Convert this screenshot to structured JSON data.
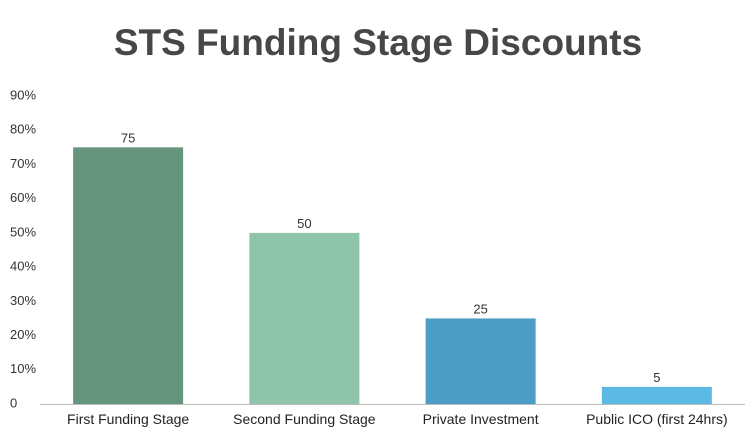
{
  "chart_data": {
    "type": "bar",
    "title": "STS Funding Stage Discounts",
    "categories": [
      "First Funding Stage",
      "Second Funding Stage",
      "Private Investment",
      "Public ICO (first 24hrs)"
    ],
    "values": [
      75,
      50,
      25,
      5
    ],
    "data_labels": [
      "75",
      "50",
      "25",
      "5"
    ],
    "colors": [
      "#66957d",
      "#8dc4aa",
      "#4b9dc5",
      "#5cb9e4"
    ],
    "ylim": [
      0,
      90
    ],
    "yticks": [
      0,
      10,
      20,
      30,
      40,
      50,
      60,
      70,
      80,
      90
    ],
    "ytick_labels": [
      "0",
      "10%",
      "20%",
      "30%",
      "40%",
      "50%",
      "60%",
      "70%",
      "80%",
      "90%"
    ],
    "grid": false,
    "xlabel": "",
    "ylabel": ""
  }
}
